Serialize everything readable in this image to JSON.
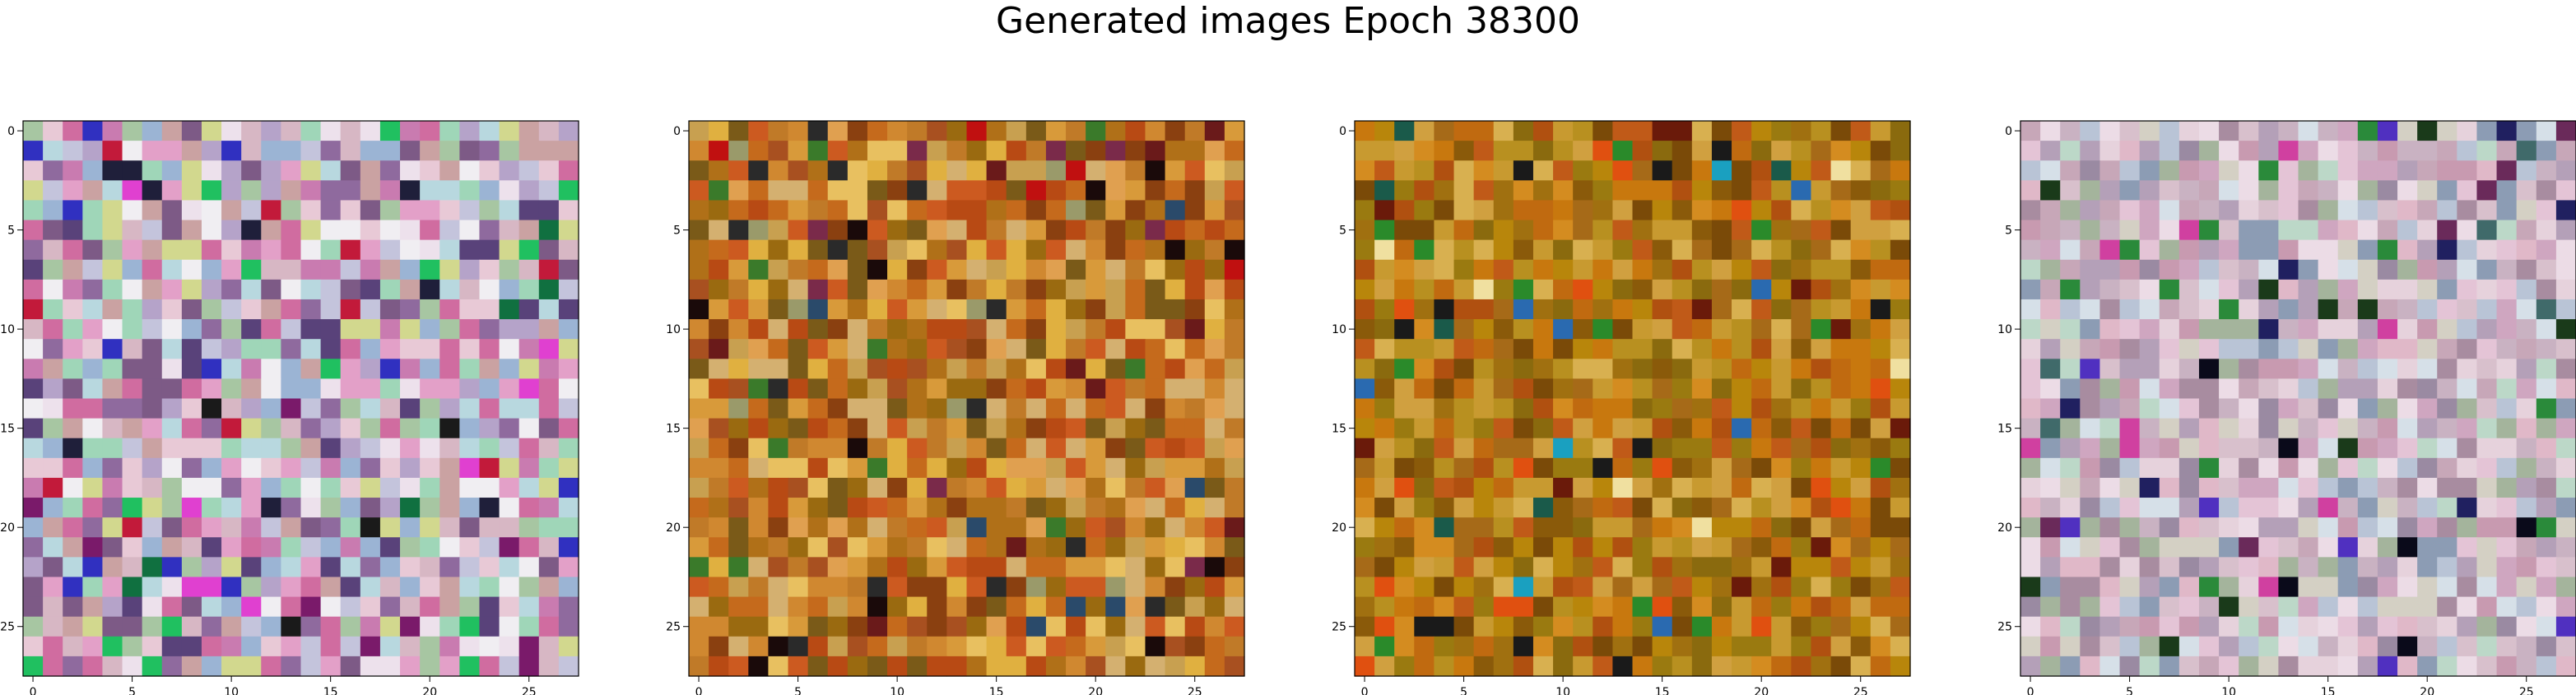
{
  "figure": {
    "title": "Generated images Epoch 38300"
  },
  "chart_data": [
    {
      "type": "heatmap",
      "title": "",
      "xlabel": "",
      "ylabel": "",
      "grid_size": [
        28,
        28
      ],
      "xlim": [
        -0.5,
        27.5
      ],
      "ylim": [
        27.5,
        -0.5
      ],
      "xticks": [
        0,
        5,
        10,
        15,
        20,
        25
      ],
      "yticks": [
        0,
        5,
        10,
        15,
        20,
        25
      ],
      "palette": [
        "#d7b7c4",
        "#e8c9d6",
        "#b5a3c9",
        "#c97bb0",
        "#a7c6a2",
        "#f0eef2",
        "#9bb4d4",
        "#d2d88e",
        "#7d5a86",
        "#e3a0c8",
        "#b8d8df",
        "#caa2a2",
        "#8f6a9e",
        "#ede1ec",
        "#59427a",
        "#d06ca0",
        "#9fd6b8",
        "#c4c4dc"
      ],
      "accents": [
        "#1f1f3a",
        "#20c060",
        "#1a1a1a",
        "#7a1a6a",
        "#c21a3a",
        "#3030c0",
        "#e040d0",
        "#107040"
      ],
      "seed": 11
    },
    {
      "type": "heatmap",
      "title": "",
      "xlabel": "",
      "ylabel": "",
      "grid_size": [
        28,
        28
      ],
      "xlim": [
        -0.5,
        27.5
      ],
      "ylim": [
        27.5,
        -0.5
      ],
      "xticks": [
        0,
        5,
        10,
        15,
        20,
        25
      ],
      "yticks": [
        0,
        5,
        10,
        15,
        20,
        25
      ],
      "palette": [
        "#c56a1c",
        "#d89a3a",
        "#b84a14",
        "#e0a050",
        "#9a6a10",
        "#c8a050",
        "#a85020",
        "#d08830",
        "#e0b040",
        "#b07018",
        "#8a4010",
        "#cc5a20",
        "#d4b070",
        "#7a5a18",
        "#c07a28",
        "#e8c060"
      ],
      "accents": [
        "#1a0a0a",
        "#2a4a6a",
        "#c01010",
        "#6a1a1a",
        "#3a7a2a",
        "#9a9a6a",
        "#2a2a2a",
        "#7a2a4a"
      ],
      "seed": 23
    },
    {
      "type": "heatmap",
      "title": "",
      "xlabel": "",
      "ylabel": "",
      "grid_size": [
        28,
        28
      ],
      "xlim": [
        -0.5,
        27.5
      ],
      "ylim": [
        27.5,
        -0.5
      ],
      "xticks": [
        0,
        5,
        10,
        15,
        20,
        25
      ],
      "yticks": [
        0,
        5,
        10,
        15,
        20,
        25
      ],
      "palette": [
        "#b8860b",
        "#c06a10",
        "#a07010",
        "#d48c20",
        "#8a5a0a",
        "#c89a30",
        "#9a7a10",
        "#b05010",
        "#d0a040",
        "#7a4a08",
        "#c8780e",
        "#a66a18",
        "#d8b050",
        "#8a6a0e",
        "#b89020",
        "#c05a18"
      ],
      "accents": [
        "#1a1a1a",
        "#2a6ab0",
        "#1a5a4a",
        "#e05010",
        "#f0e0a0",
        "#2a8a2a",
        "#6a1a0a",
        "#1aa0c0"
      ],
      "seed": 37
    },
    {
      "type": "heatmap",
      "title": "",
      "xlabel": "",
      "ylabel": "",
      "grid_size": [
        28,
        28
      ],
      "xlim": [
        -0.5,
        27.5
      ],
      "ylim": [
        27.5,
        -0.5
      ],
      "xticks": [
        0,
        5,
        10,
        15,
        20,
        25
      ],
      "yticks": [
        0,
        5,
        10,
        15,
        20,
        25
      ],
      "palette": [
        "#d8c0cc",
        "#c7a7b8",
        "#e6d2dc",
        "#b9c4d6",
        "#c9b2c2",
        "#d4d0c4",
        "#a88ca0",
        "#e4c4d6",
        "#bcd8c8",
        "#cfa6c0",
        "#9a8aa2",
        "#ecdce6",
        "#b4a0b8",
        "#8c9cb4",
        "#c89ab0",
        "#d6e0e8",
        "#a4b49c",
        "#e0b8c8"
      ],
      "accents": [
        "#0a0a1a",
        "#1a3a1a",
        "#202060",
        "#6a2a5a",
        "#2a8a3a",
        "#5030c0",
        "#d040a0",
        "#406a6a"
      ],
      "seed": 53
    }
  ]
}
